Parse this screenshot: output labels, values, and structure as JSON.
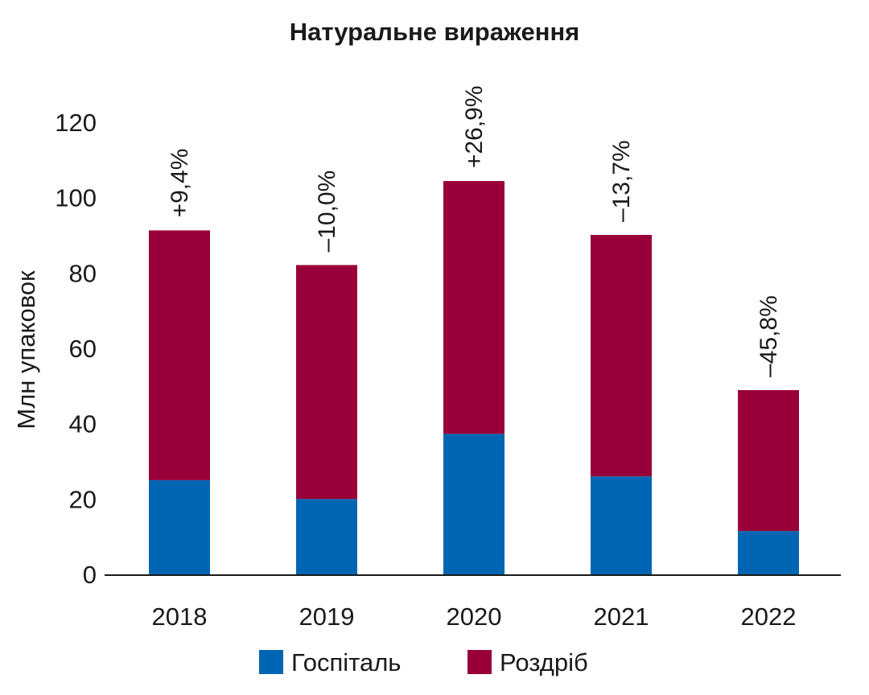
{
  "chart_data": {
    "type": "bar",
    "stacked": true,
    "title": "Натуральне вираження",
    "ylabel": "Млн упаковок",
    "xlabel": "",
    "ylim": [
      0,
      120
    ],
    "yticks": [
      0,
      20,
      40,
      60,
      80,
      100,
      120
    ],
    "grid": false,
    "legend_position": "bottom",
    "categories": [
      "2018",
      "2019",
      "2020",
      "2021",
      "2022"
    ],
    "series": [
      {
        "name": "Госпіталь",
        "color": "#0066b3",
        "values": [
          25,
          20,
          37.3,
          26,
          11.5
        ]
      },
      {
        "name": "Роздріб",
        "color": "#990039",
        "values": [
          66.3,
          62.1,
          67.1,
          64.1,
          37.4
        ]
      }
    ],
    "annotations": [
      "+9,4%",
      "–10,0%",
      "+26,9%",
      "–13,7%",
      "–45,8%"
    ]
  }
}
